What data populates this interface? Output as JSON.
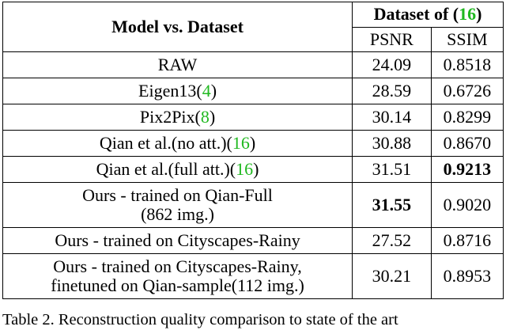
{
  "header": {
    "model_col": "Model vs. Dataset",
    "dataset_prefix": "Dataset of (",
    "dataset_ref": "16",
    "dataset_suffix": ")",
    "psnr": "PSNR",
    "ssim": "SSIM"
  },
  "rows": [
    {
      "line1": "RAW",
      "ref": "",
      "ref_suffix": "",
      "line2": "",
      "psnr": "24.09",
      "ssim": "0.8518"
    },
    {
      "line1": "Eigen13(",
      "ref": "4",
      "ref_suffix": ")",
      "line2": "",
      "psnr": "28.59",
      "ssim": "0.6726"
    },
    {
      "line1": "Pix2Pix(",
      "ref": "8",
      "ref_suffix": ")",
      "line2": "",
      "psnr": "30.14",
      "ssim": "0.8299"
    },
    {
      "line1": "Qian et al.(no att.)(",
      "ref": "16",
      "ref_suffix": ")",
      "line2": "",
      "psnr": "30.88",
      "ssim": "0.8670"
    },
    {
      "line1": "Qian et al.(full att.)(",
      "ref": "16",
      "ref_suffix": ")",
      "line2": "",
      "psnr": "31.51",
      "ssim": "0.9213"
    },
    {
      "line1": "Ours - trained on Qian-Full",
      "ref": "",
      "ref_suffix": "",
      "line2": "(862 img.)",
      "psnr": "31.55",
      "ssim": "0.9020"
    },
    {
      "line1": "Ours - trained on Cityscapes-Rainy",
      "ref": "",
      "ref_suffix": "",
      "line2": "",
      "psnr": "27.52",
      "ssim": "0.8716"
    },
    {
      "line1": "Ours - trained on Cityscapes-Rainy,",
      "ref": "",
      "ref_suffix": "",
      "line2": "finetuned on Qian-sample(112 img.)",
      "psnr": "30.21",
      "ssim": "0.8953"
    }
  ],
  "caption": "Table 2. Reconstruction quality comparison to state of the art"
}
